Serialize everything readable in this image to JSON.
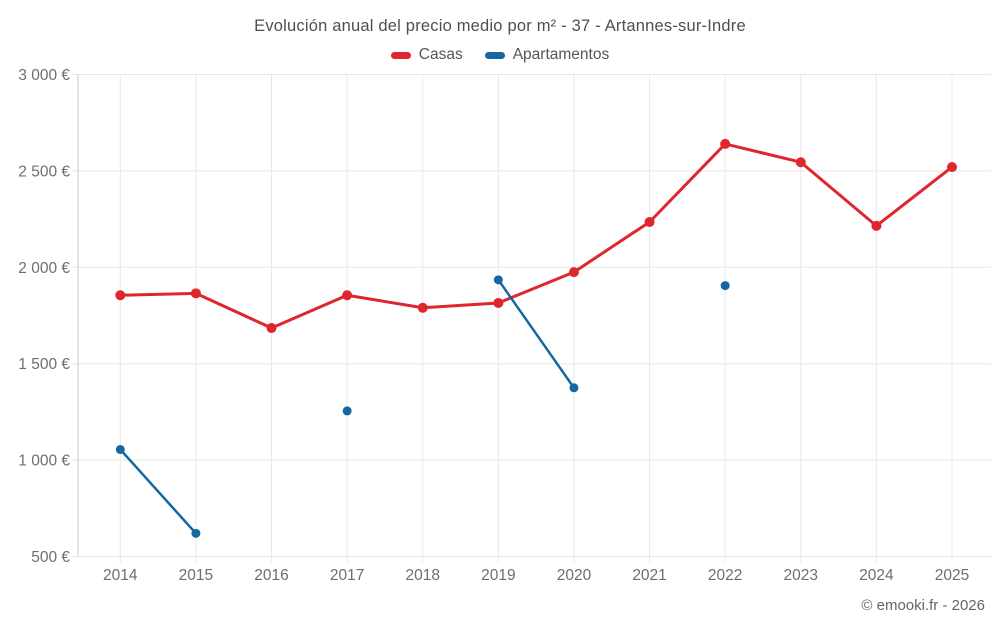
{
  "chart_data": {
    "type": "line",
    "title": "Evolución anual del precio medio por m² - 37 - Artannes-sur-Indre",
    "x": [
      "2014",
      "2015",
      "2016",
      "2017",
      "2018",
      "2019",
      "2020",
      "2021",
      "2022",
      "2023",
      "2024",
      "2025"
    ],
    "series": [
      {
        "name": "Casas",
        "color": "#e0262d",
        "line_width": 3,
        "point_radius": 5,
        "values": [
          1855,
          1865,
          1685,
          1855,
          1790,
          1815,
          1975,
          2235,
          2640,
          2545,
          2215,
          2520
        ]
      },
      {
        "name": "Apartamentos",
        "color": "#1467a0",
        "line_width": 2.5,
        "point_radius": 4.5,
        "values": [
          1055,
          620,
          null,
          1255,
          null,
          1935,
          1375,
          null,
          1905,
          null,
          null,
          null
        ]
      }
    ],
    "xlabel": "",
    "ylabel": "",
    "ylim": [
      500,
      3000
    ],
    "yticks": [
      {
        "value": 500,
        "label": "500 €"
      },
      {
        "value": 1000,
        "label": "1 000 €"
      },
      {
        "value": 1500,
        "label": "1 500 €"
      },
      {
        "value": 2000,
        "label": "2 000 €"
      },
      {
        "value": 2500,
        "label": "2 500 €"
      },
      {
        "value": 3000,
        "label": "3 000 €"
      }
    ],
    "grid": true,
    "legend_position": "top"
  },
  "watermark": {
    "text": "© emooki.fr - 2026"
  },
  "theme": {
    "background": "#ffffff",
    "grid_color": "#e8e8e8",
    "axis_color": "#c8c8c8",
    "tick_label_color": "#6e6e6e",
    "title_color": "#4f4f4f",
    "legend_text_color": "#555555",
    "watermark_color": "#666666"
  }
}
